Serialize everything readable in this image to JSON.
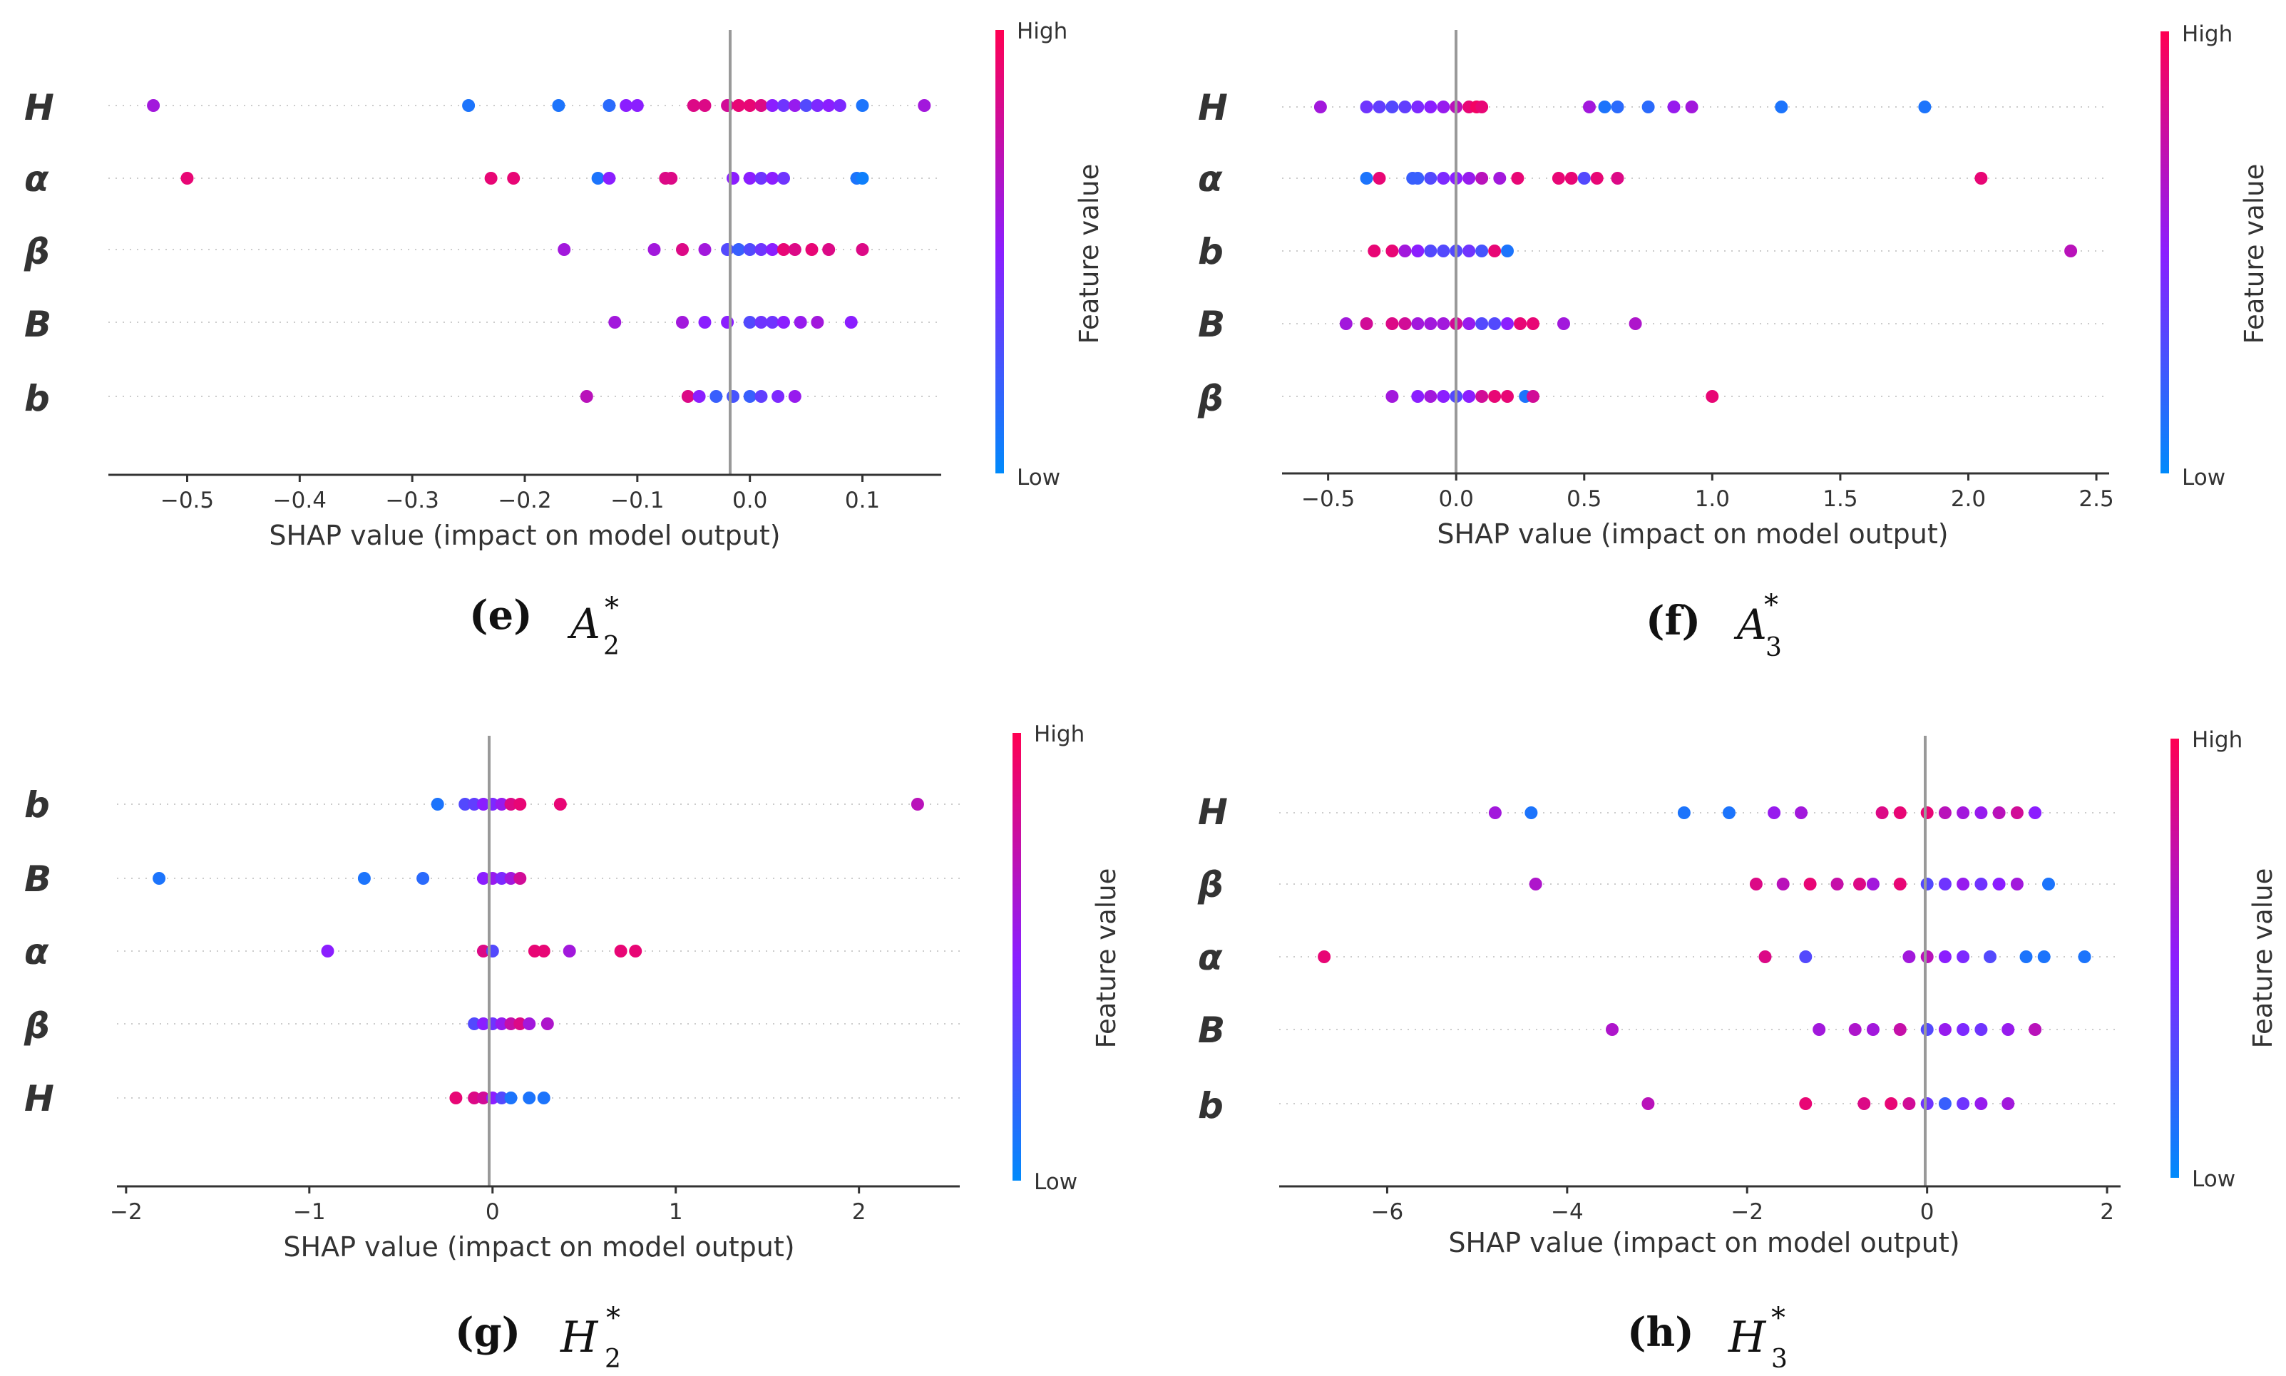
{
  "colorbar": {
    "high_label": "High",
    "low_label": "Low",
    "axis_label": "Feature value",
    "low_color": "#008afb",
    "mid_color": "#8b1eff",
    "high_color": "#ff0052"
  },
  "chart_data": [
    {
      "type": "scatter",
      "subtype": "shap-beeswarm",
      "panel_label": "(e)",
      "symbol": "A",
      "subscript": "2",
      "superscript": "*",
      "xlabel": "SHAP value (impact on model output)",
      "xlim": [
        -0.57,
        0.17
      ],
      "xticks": [
        -0.5,
        -0.4,
        -0.3,
        -0.2,
        -0.1,
        0.0,
        0.1
      ],
      "xtick_labels": [
        "−0.5",
        "−0.4",
        "−0.3",
        "−0.2",
        "−0.1",
        "0.0",
        "0.1"
      ],
      "features": [
        "H",
        "α",
        "β",
        "B",
        "b"
      ],
      "points": [
        [
          [
            -0.53,
            0.6
          ],
          [
            -0.25,
            0.1
          ],
          [
            -0.17,
            0.1
          ],
          [
            -0.125,
            0.15
          ],
          [
            -0.11,
            0.5
          ],
          [
            -0.1,
            0.5
          ],
          [
            -0.05,
            0.85
          ],
          [
            -0.04,
            0.85
          ],
          [
            -0.02,
            0.8
          ],
          [
            -0.01,
            0.9
          ],
          [
            0.0,
            0.9
          ],
          [
            0.01,
            0.85
          ],
          [
            0.02,
            0.5
          ],
          [
            0.03,
            0.4
          ],
          [
            0.04,
            0.55
          ],
          [
            0.05,
            0.3
          ],
          [
            0.06,
            0.45
          ],
          [
            0.07,
            0.5
          ],
          [
            0.08,
            0.45
          ],
          [
            0.1,
            0.1
          ],
          [
            0.155,
            0.6
          ]
        ],
        [
          [
            -0.5,
            0.9
          ],
          [
            -0.23,
            0.9
          ],
          [
            -0.21,
            0.9
          ],
          [
            -0.135,
            0.1
          ],
          [
            -0.125,
            0.5
          ],
          [
            -0.075,
            0.85
          ],
          [
            -0.07,
            0.85
          ],
          [
            -0.015,
            0.5
          ],
          [
            0.0,
            0.5
          ],
          [
            0.01,
            0.4
          ],
          [
            0.02,
            0.5
          ],
          [
            0.03,
            0.4
          ],
          [
            0.095,
            0.1
          ],
          [
            0.1,
            0.05
          ]
        ],
        [
          [
            -0.165,
            0.6
          ],
          [
            -0.085,
            0.6
          ],
          [
            -0.06,
            0.85
          ],
          [
            -0.04,
            0.6
          ],
          [
            -0.02,
            0.3
          ],
          [
            -0.01,
            0.2
          ],
          [
            0.0,
            0.3
          ],
          [
            0.01,
            0.4
          ],
          [
            0.02,
            0.5
          ],
          [
            0.03,
            0.9
          ],
          [
            0.04,
            0.85
          ],
          [
            0.055,
            0.9
          ],
          [
            0.07,
            0.85
          ],
          [
            0.1,
            0.85
          ]
        ],
        [
          [
            -0.12,
            0.6
          ],
          [
            -0.06,
            0.6
          ],
          [
            -0.04,
            0.5
          ],
          [
            -0.02,
            0.5
          ],
          [
            0.0,
            0.3
          ],
          [
            0.01,
            0.4
          ],
          [
            0.02,
            0.4
          ],
          [
            0.03,
            0.5
          ],
          [
            0.045,
            0.55
          ],
          [
            0.06,
            0.6
          ],
          [
            0.09,
            0.5
          ]
        ],
        [
          [
            -0.145,
            0.7
          ],
          [
            -0.055,
            0.85
          ],
          [
            -0.045,
            0.5
          ],
          [
            -0.03,
            0.2
          ],
          [
            -0.015,
            0.25
          ],
          [
            0.0,
            0.2
          ],
          [
            0.01,
            0.35
          ],
          [
            0.025,
            0.45
          ],
          [
            0.04,
            0.55
          ]
        ]
      ]
    },
    {
      "type": "scatter",
      "subtype": "shap-beeswarm",
      "panel_label": "(f)",
      "symbol": "A",
      "subscript": "3",
      "superscript": "*",
      "xlabel": "SHAP value (impact on model output)",
      "xlim": [
        -0.68,
        2.55
      ],
      "xticks": [
        -0.5,
        0.0,
        0.5,
        1.0,
        1.5,
        2.0,
        2.5
      ],
      "xtick_labels": [
        "−0.5",
        "0.0",
        "0.5",
        "1.0",
        "1.5",
        "2.0",
        "2.5"
      ],
      "features": [
        "H",
        "α",
        "b",
        "B",
        "β"
      ],
      "points": [
        [
          [
            -0.53,
            0.6
          ],
          [
            -0.35,
            0.4
          ],
          [
            -0.3,
            0.35
          ],
          [
            -0.25,
            0.3
          ],
          [
            -0.2,
            0.35
          ],
          [
            -0.15,
            0.45
          ],
          [
            -0.1,
            0.5
          ],
          [
            -0.05,
            0.55
          ],
          [
            0.0,
            0.7
          ],
          [
            0.05,
            0.9
          ],
          [
            0.08,
            0.95
          ],
          [
            0.1,
            0.9
          ],
          [
            0.52,
            0.6
          ],
          [
            0.58,
            0.1
          ],
          [
            0.63,
            0.15
          ],
          [
            0.75,
            0.15
          ],
          [
            0.85,
            0.55
          ],
          [
            0.92,
            0.6
          ],
          [
            1.27,
            0.1
          ],
          [
            1.83,
            0.1
          ]
        ],
        [
          [
            -0.35,
            0.1
          ],
          [
            -0.3,
            0.9
          ],
          [
            -0.17,
            0.2
          ],
          [
            -0.15,
            0.2
          ],
          [
            -0.1,
            0.3
          ],
          [
            -0.05,
            0.45
          ],
          [
            0.0,
            0.5
          ],
          [
            0.05,
            0.55
          ],
          [
            0.1,
            0.7
          ],
          [
            0.17,
            0.6
          ],
          [
            0.24,
            0.9
          ],
          [
            0.4,
            0.9
          ],
          [
            0.45,
            0.9
          ],
          [
            0.5,
            0.3
          ],
          [
            0.55,
            0.9
          ],
          [
            0.63,
            0.85
          ],
          [
            2.05,
            0.9
          ]
        ],
        [
          [
            -0.32,
            0.9
          ],
          [
            -0.25,
            0.9
          ],
          [
            -0.2,
            0.6
          ],
          [
            -0.15,
            0.5
          ],
          [
            -0.1,
            0.3
          ],
          [
            -0.05,
            0.3
          ],
          [
            0.0,
            0.3
          ],
          [
            0.05,
            0.4
          ],
          [
            0.1,
            0.25
          ],
          [
            0.15,
            0.9
          ],
          [
            0.2,
            0.1
          ],
          [
            2.4,
            0.7
          ]
        ],
        [
          [
            -0.43,
            0.6
          ],
          [
            -0.35,
            0.8
          ],
          [
            -0.25,
            0.85
          ],
          [
            -0.2,
            0.8
          ],
          [
            -0.15,
            0.6
          ],
          [
            -0.1,
            0.6
          ],
          [
            -0.05,
            0.6
          ],
          [
            0.0,
            0.8
          ],
          [
            0.05,
            0.55
          ],
          [
            0.1,
            0.3
          ],
          [
            0.15,
            0.3
          ],
          [
            0.2,
            0.5
          ],
          [
            0.25,
            0.9
          ],
          [
            0.3,
            0.9
          ],
          [
            0.42,
            0.6
          ],
          [
            0.7,
            0.65
          ]
        ],
        [
          [
            -0.25,
            0.6
          ],
          [
            -0.15,
            0.5
          ],
          [
            -0.1,
            0.6
          ],
          [
            -0.05,
            0.5
          ],
          [
            0.0,
            0.3
          ],
          [
            0.05,
            0.5
          ],
          [
            0.1,
            0.8
          ],
          [
            0.15,
            0.9
          ],
          [
            0.2,
            0.9
          ],
          [
            0.27,
            0.1
          ],
          [
            0.3,
            0.8
          ],
          [
            1.0,
            0.9
          ]
        ]
      ]
    },
    {
      "type": "scatter",
      "subtype": "shap-beeswarm",
      "panel_label": "(g)",
      "symbol": "H",
      "subscript": "2",
      "superscript": "*",
      "xlabel": "SHAP value (impact on model output)",
      "xlim": [
        -2.05,
        2.55
      ],
      "xticks": [
        -2,
        -1,
        0,
        1,
        2
      ],
      "xtick_labels": [
        "−2",
        "−1",
        "0",
        "1",
        "2"
      ],
      "features": [
        "b",
        "B",
        "α",
        "β",
        "H"
      ],
      "points": [
        [
          [
            -0.3,
            0.1
          ],
          [
            -0.15,
            0.3
          ],
          [
            -0.1,
            0.35
          ],
          [
            -0.05,
            0.5
          ],
          [
            0.0,
            0.45
          ],
          [
            0.05,
            0.55
          ],
          [
            0.1,
            0.85
          ],
          [
            0.15,
            0.9
          ],
          [
            0.37,
            0.9
          ],
          [
            2.32,
            0.7
          ]
        ],
        [
          [
            -1.82,
            0.1
          ],
          [
            -0.7,
            0.1
          ],
          [
            -0.38,
            0.15
          ],
          [
            -0.05,
            0.5
          ],
          [
            0.0,
            0.55
          ],
          [
            0.05,
            0.45
          ],
          [
            0.1,
            0.6
          ],
          [
            0.15,
            0.8
          ]
        ],
        [
          [
            -0.9,
            0.5
          ],
          [
            -0.05,
            0.85
          ],
          [
            0.0,
            0.3
          ],
          [
            0.23,
            0.9
          ],
          [
            0.28,
            0.9
          ],
          [
            0.42,
            0.6
          ],
          [
            0.7,
            0.9
          ],
          [
            0.78,
            0.9
          ]
        ],
        [
          [
            -0.1,
            0.3
          ],
          [
            -0.05,
            0.5
          ],
          [
            0.0,
            0.4
          ],
          [
            0.05,
            0.55
          ],
          [
            0.1,
            0.75
          ],
          [
            0.15,
            0.85
          ],
          [
            0.2,
            0.6
          ],
          [
            0.3,
            0.65
          ]
        ],
        [
          [
            -0.2,
            0.9
          ],
          [
            -0.1,
            0.85
          ],
          [
            -0.05,
            0.8
          ],
          [
            0.0,
            0.5
          ],
          [
            0.05,
            0.3
          ],
          [
            0.1,
            0.1
          ],
          [
            0.2,
            0.1
          ],
          [
            0.28,
            0.1
          ]
        ]
      ]
    },
    {
      "type": "scatter",
      "subtype": "shap-beeswarm",
      "panel_label": "(h)",
      "symbol": "H",
      "subscript": "3",
      "superscript": "*",
      "xlabel": "SHAP value (impact on model output)",
      "xlim": [
        -7.2,
        2.15
      ],
      "xticks": [
        -6,
        -4,
        -2,
        0,
        2
      ],
      "xtick_labels": [
        "−6",
        "−4",
        "−2",
        "0",
        "2"
      ],
      "features": [
        "H",
        "β",
        "α",
        "B",
        "b"
      ],
      "points": [
        [
          [
            -4.8,
            0.6
          ],
          [
            -4.4,
            0.1
          ],
          [
            -2.7,
            0.1
          ],
          [
            -2.2,
            0.1
          ],
          [
            -1.7,
            0.55
          ],
          [
            -1.4,
            0.6
          ],
          [
            -0.5,
            0.85
          ],
          [
            -0.3,
            0.9
          ],
          [
            0.0,
            0.9
          ],
          [
            0.2,
            0.7
          ],
          [
            0.4,
            0.6
          ],
          [
            0.6,
            0.55
          ],
          [
            0.8,
            0.7
          ],
          [
            1.0,
            0.8
          ],
          [
            1.2,
            0.5
          ]
        ],
        [
          [
            -4.35,
            0.65
          ],
          [
            -1.9,
            0.85
          ],
          [
            -1.6,
            0.7
          ],
          [
            -1.3,
            0.9
          ],
          [
            -1.0,
            0.75
          ],
          [
            -0.75,
            0.85
          ],
          [
            -0.6,
            0.6
          ],
          [
            -0.3,
            0.9
          ],
          [
            0.0,
            0.3
          ],
          [
            0.2,
            0.4
          ],
          [
            0.4,
            0.55
          ],
          [
            0.6,
            0.4
          ],
          [
            0.8,
            0.5
          ],
          [
            1.0,
            0.6
          ],
          [
            1.35,
            0.1
          ]
        ],
        [
          [
            -6.7,
            0.9
          ],
          [
            -1.8,
            0.85
          ],
          [
            -1.35,
            0.3
          ],
          [
            -0.2,
            0.6
          ],
          [
            0.0,
            0.7
          ],
          [
            0.2,
            0.5
          ],
          [
            0.4,
            0.45
          ],
          [
            0.7,
            0.3
          ],
          [
            1.1,
            0.1
          ],
          [
            1.3,
            0.1
          ],
          [
            1.75,
            0.1
          ]
        ],
        [
          [
            -3.5,
            0.65
          ],
          [
            -1.2,
            0.6
          ],
          [
            -0.8,
            0.65
          ],
          [
            -0.6,
            0.6
          ],
          [
            -0.3,
            0.75
          ],
          [
            0.0,
            0.3
          ],
          [
            0.2,
            0.55
          ],
          [
            0.4,
            0.45
          ],
          [
            0.6,
            0.4
          ],
          [
            0.9,
            0.55
          ],
          [
            1.2,
            0.7
          ]
        ],
        [
          [
            -3.1,
            0.7
          ],
          [
            -1.35,
            0.9
          ],
          [
            -0.7,
            0.85
          ],
          [
            -0.4,
            0.9
          ],
          [
            -0.2,
            0.8
          ],
          [
            0.0,
            0.4
          ],
          [
            0.2,
            0.2
          ],
          [
            0.4,
            0.4
          ],
          [
            0.6,
            0.55
          ],
          [
            0.9,
            0.6
          ]
        ]
      ]
    }
  ]
}
